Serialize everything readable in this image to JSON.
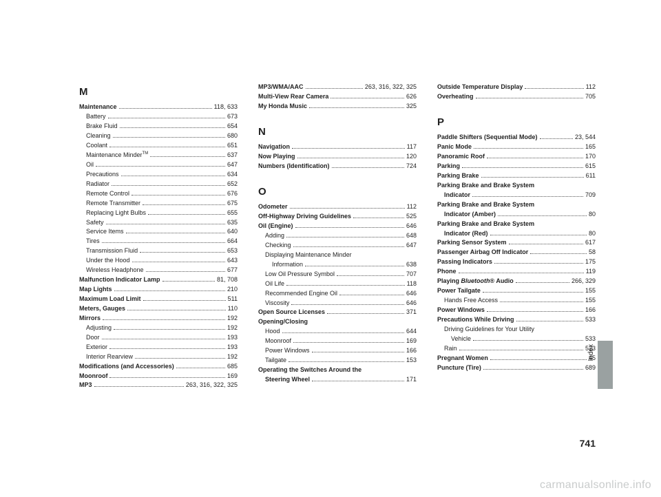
{
  "pageNumber": "741",
  "sideTab": "Index",
  "watermark": "carmanualsonline.info",
  "columns": [
    {
      "groups": [
        {
          "letter": "M",
          "entries": [
            {
              "label": "Maintenance",
              "bold": true,
              "pages": "118, 633"
            },
            {
              "label": "Battery",
              "sub": 1,
              "pages": "673"
            },
            {
              "label": "Brake Fluid",
              "sub": 1,
              "pages": "654"
            },
            {
              "label": "Cleaning",
              "sub": 1,
              "pages": "680"
            },
            {
              "label": "Coolant",
              "sub": 1,
              "pages": "651"
            },
            {
              "label": "Maintenance Minder<sup>TM</sup>",
              "sub": 1,
              "html": true,
              "pages": "637"
            },
            {
              "label": "Oil",
              "sub": 1,
              "pages": "647"
            },
            {
              "label": "Precautions",
              "sub": 1,
              "pages": "634"
            },
            {
              "label": "Radiator",
              "sub": 1,
              "pages": "652"
            },
            {
              "label": "Remote Control",
              "sub": 1,
              "pages": "676"
            },
            {
              "label": "Remote Transmitter",
              "sub": 1,
              "pages": "675"
            },
            {
              "label": "Replacing Light Bulbs",
              "sub": 1,
              "pages": "655"
            },
            {
              "label": "Safety",
              "sub": 1,
              "pages": "635"
            },
            {
              "label": "Service Items",
              "sub": 1,
              "pages": "640"
            },
            {
              "label": "Tires",
              "sub": 1,
              "pages": "664"
            },
            {
              "label": "Transmission Fluid",
              "sub": 1,
              "pages": "653"
            },
            {
              "label": "Under the Hood",
              "sub": 1,
              "pages": "643"
            },
            {
              "label": "Wireless Headphone",
              "sub": 1,
              "pages": "677"
            },
            {
              "label": "Malfunction Indicator Lamp",
              "bold": true,
              "pages": "81, 708"
            },
            {
              "label": "Map Lights",
              "bold": true,
              "pages": "210"
            },
            {
              "label": "Maximum Load Limit",
              "bold": true,
              "pages": "511"
            },
            {
              "label": "Meters, Gauges",
              "bold": true,
              "pages": "110"
            },
            {
              "label": "Mirrors",
              "bold": true,
              "pages": "192"
            },
            {
              "label": "Adjusting",
              "sub": 1,
              "pages": "192"
            },
            {
              "label": "Door",
              "sub": 1,
              "pages": "193"
            },
            {
              "label": "Exterior",
              "sub": 1,
              "pages": "193"
            },
            {
              "label": "Interior Rearview",
              "sub": 1,
              "pages": "192"
            },
            {
              "label": "Modifications (and Accessories)",
              "bold": true,
              "pages": "685"
            },
            {
              "label": "Moonroof",
              "bold": true,
              "pages": "169"
            },
            {
              "label": "MP3",
              "bold": true,
              "pages": "263, 316, 322, 325"
            }
          ]
        }
      ]
    },
    {
      "groups": [
        {
          "entries": [
            {
              "label": "MP3/WMA/AAC",
              "bold": true,
              "pages": "263, 316, 322, 325"
            },
            {
              "label": "Multi-View Rear Camera",
              "bold": true,
              "pages": "626"
            },
            {
              "label": "My Honda Music",
              "bold": true,
              "pages": "325"
            }
          ]
        },
        {
          "letter": "N",
          "gap": true,
          "entries": [
            {
              "label": "Navigation",
              "bold": true,
              "pages": "117"
            },
            {
              "label": "Now Playing",
              "bold": true,
              "pages": "120"
            },
            {
              "label": "Numbers (Identification)",
              "bold": true,
              "pages": "724"
            }
          ]
        },
        {
          "letter": "O",
          "gap": true,
          "entries": [
            {
              "label": "Odometer",
              "bold": true,
              "pages": "112"
            },
            {
              "label": "Off-Highway Driving Guidelines",
              "bold": true,
              "pages": "525"
            },
            {
              "label": "Oil (Engine)",
              "bold": true,
              "pages": "646"
            },
            {
              "label": "Adding",
              "sub": 1,
              "pages": "648"
            },
            {
              "label": "Checking",
              "sub": 1,
              "pages": "647"
            },
            {
              "label": "Displaying Maintenance Minder",
              "sub": 1,
              "nodots": true
            },
            {
              "label": "Information",
              "sub": 2,
              "pages": "638"
            },
            {
              "label": "Low Oil Pressure Symbol",
              "sub": 1,
              "pages": "707"
            },
            {
              "label": "Oil Life",
              "sub": 1,
              "pages": "118"
            },
            {
              "label": "Recommended Engine Oil",
              "sub": 1,
              "pages": "646"
            },
            {
              "label": "Viscosity",
              "sub": 1,
              "pages": "646"
            },
            {
              "label": "Open Source Licenses",
              "bold": true,
              "pages": "371"
            },
            {
              "label": "Opening/Closing",
              "bold": true,
              "nodots": true
            },
            {
              "label": "Hood",
              "sub": 1,
              "pages": "644"
            },
            {
              "label": "Moonroof",
              "sub": 1,
              "pages": "169"
            },
            {
              "label": "Power Windows",
              "sub": 1,
              "pages": "166"
            },
            {
              "label": "Tailgate",
              "sub": 1,
              "pages": "153"
            },
            {
              "label": "Operating the Switches Around the",
              "bold": true,
              "nodots": true
            },
            {
              "label": "Steering Wheel",
              "bold": true,
              "sub": 1,
              "pages": "171"
            }
          ]
        }
      ]
    },
    {
      "groups": [
        {
          "entries": [
            {
              "label": "Outside Temperature Display",
              "bold": true,
              "pages": "112"
            },
            {
              "label": "Overheating",
              "bold": true,
              "pages": "705"
            }
          ]
        },
        {
          "letter": "P",
          "gap": true,
          "entries": [
            {
              "label": "Paddle Shifters (Sequential Mode)",
              "bold": true,
              "pages": "23, 544"
            },
            {
              "label": "Panic Mode",
              "bold": true,
              "pages": "165"
            },
            {
              "label": "Panoramic Roof",
              "bold": true,
              "pages": "170"
            },
            {
              "label": "Parking",
              "bold": true,
              "pages": "615"
            },
            {
              "label": "Parking Brake",
              "bold": true,
              "pages": "611"
            },
            {
              "label": "Parking Brake and Brake System",
              "bold": true,
              "nodots": true
            },
            {
              "label": "Indicator",
              "bold": true,
              "sub": 1,
              "pages": "709"
            },
            {
              "label": "Parking Brake and Brake System",
              "bold": true,
              "nodots": true
            },
            {
              "label": "Indicator (Amber)",
              "bold": true,
              "sub": 1,
              "pages": "80"
            },
            {
              "label": "Parking Brake and Brake System",
              "bold": true,
              "nodots": true
            },
            {
              "label": "Indicator (Red)",
              "bold": true,
              "sub": 1,
              "pages": "80"
            },
            {
              "label": "Parking Sensor System",
              "bold": true,
              "pages": "617"
            },
            {
              "label": "Passenger Airbag Off Indicator",
              "bold": true,
              "pages": "58"
            },
            {
              "label": "Passing Indicators",
              "bold": true,
              "pages": "175"
            },
            {
              "label": "Phone",
              "bold": true,
              "pages": "119"
            },
            {
              "label": "Playing <i>Bluetooth</i>® Audio",
              "bold": true,
              "html": true,
              "pages": "266, 329"
            },
            {
              "label": "Power Tailgate",
              "bold": true,
              "pages": "155"
            },
            {
              "label": "Hands Free Access",
              "sub": 1,
              "pages": "155"
            },
            {
              "label": "Power Windows",
              "bold": true,
              "pages": "166"
            },
            {
              "label": "Precautions While Driving",
              "bold": true,
              "pages": "533"
            },
            {
              "label": "Driving Guidelines for Your Utility",
              "sub": 1,
              "nodots": true
            },
            {
              "label": "Vehicle",
              "sub": 2,
              "pages": "533"
            },
            {
              "label": "Rain",
              "sub": 1,
              "pages": "533"
            },
            {
              "label": "Pregnant Women",
              "bold": true,
              "pages": "45"
            },
            {
              "label": "Puncture (Tire)",
              "bold": true,
              "pages": "689"
            }
          ]
        }
      ]
    }
  ]
}
